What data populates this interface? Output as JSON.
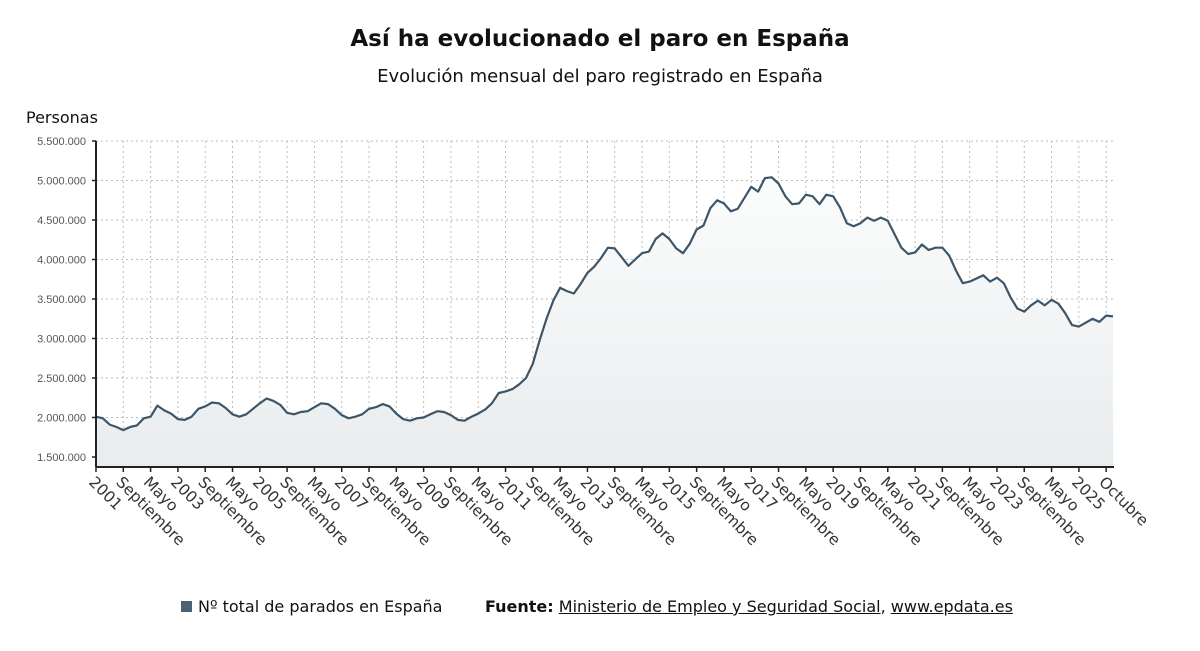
{
  "chart_data": {
    "type": "area",
    "title": "Así ha evolucionado el paro en España",
    "subtitle": "Evolución mensual del paro registrado en España",
    "ylabel": "Personas",
    "xlabel": "",
    "ylim": [
      1500000,
      5500000
    ],
    "y_ticks": [
      "1.500.000",
      "2.000.000",
      "2.500.000",
      "3.000.000",
      "3.500.000",
      "4.000.000",
      "4.500.000",
      "5.000.000",
      "5.500.000"
    ],
    "y_tick_values": [
      1500000,
      2000000,
      2500000,
      3000000,
      3500000,
      4000000,
      4500000,
      5000000,
      5500000
    ],
    "x_start": "2001-01",
    "x_end": "2025-10",
    "x_tick_labels": [
      "2001",
      "Septiembre",
      "Mayo",
      "2003",
      "Septiembre",
      "Mayo",
      "2005",
      "Septiembre",
      "Mayo",
      "2007",
      "Septiembre",
      "Mayo",
      "2009",
      "Septiembre",
      "Mayo",
      "2011",
      "Septiembre",
      "Mayo",
      "2013",
      "Septiembre",
      "Mayo",
      "2015",
      "Septiembre",
      "Mayo",
      "2017",
      "Septiembre",
      "Mayo",
      "2019",
      "Septiembre",
      "Mayo",
      "2021",
      "Septiembre",
      "Mayo",
      "2023",
      "Septiembre",
      "Mayo",
      "2025",
      "Octubre"
    ],
    "grid": true,
    "series": [
      {
        "name": "Nº total de parados en España",
        "color": "#3d5568",
        "keypoints_month_index_value": [
          [
            0,
            2010000
          ],
          [
            2,
            1990000
          ],
          [
            4,
            1910000
          ],
          [
            6,
            1880000
          ],
          [
            8,
            1840000
          ],
          [
            10,
            1880000
          ],
          [
            12,
            1900000
          ],
          [
            14,
            1990000
          ],
          [
            16,
            2010000
          ],
          [
            18,
            2150000
          ],
          [
            20,
            2090000
          ],
          [
            22,
            2050000
          ],
          [
            24,
            1980000
          ],
          [
            26,
            1970000
          ],
          [
            28,
            2010000
          ],
          [
            30,
            2110000
          ],
          [
            32,
            2140000
          ],
          [
            34,
            2190000
          ],
          [
            36,
            2180000
          ],
          [
            38,
            2120000
          ],
          [
            40,
            2040000
          ],
          [
            42,
            2010000
          ],
          [
            44,
            2040000
          ],
          [
            46,
            2110000
          ],
          [
            48,
            2180000
          ],
          [
            50,
            2240000
          ],
          [
            52,
            2210000
          ],
          [
            54,
            2160000
          ],
          [
            56,
            2060000
          ],
          [
            58,
            2040000
          ],
          [
            60,
            2070000
          ],
          [
            62,
            2080000
          ],
          [
            64,
            2130000
          ],
          [
            66,
            2180000
          ],
          [
            68,
            2170000
          ],
          [
            70,
            2110000
          ],
          [
            72,
            2030000
          ],
          [
            74,
            1990000
          ],
          [
            76,
            2010000
          ],
          [
            78,
            2040000
          ],
          [
            80,
            2110000
          ],
          [
            82,
            2130000
          ],
          [
            84,
            2170000
          ],
          [
            86,
            2140000
          ],
          [
            88,
            2050000
          ],
          [
            90,
            1980000
          ],
          [
            92,
            1960000
          ],
          [
            94,
            1990000
          ],
          [
            96,
            2000000
          ],
          [
            98,
            2040000
          ],
          [
            100,
            2080000
          ],
          [
            102,
            2070000
          ],
          [
            104,
            2030000
          ],
          [
            106,
            1970000
          ],
          [
            108,
            1960000
          ],
          [
            110,
            2010000
          ],
          [
            112,
            2050000
          ],
          [
            114,
            2100000
          ],
          [
            116,
            2180000
          ],
          [
            118,
            2310000
          ],
          [
            120,
            2330000
          ],
          [
            122,
            2360000
          ],
          [
            124,
            2420000
          ],
          [
            126,
            2500000
          ],
          [
            128,
            2680000
          ],
          [
            130,
            2980000
          ],
          [
            132,
            3250000
          ],
          [
            134,
            3480000
          ],
          [
            136,
            3640000
          ],
          [
            138,
            3600000
          ],
          [
            140,
            3570000
          ],
          [
            142,
            3690000
          ],
          [
            144,
            3830000
          ],
          [
            146,
            3910000
          ],
          [
            148,
            4020000
          ],
          [
            150,
            4150000
          ],
          [
            152,
            4140000
          ],
          [
            154,
            4030000
          ],
          [
            156,
            3920000
          ],
          [
            158,
            4000000
          ],
          [
            160,
            4080000
          ],
          [
            162,
            4100000
          ],
          [
            164,
            4260000
          ],
          [
            166,
            4330000
          ],
          [
            168,
            4260000
          ],
          [
            170,
            4140000
          ],
          [
            172,
            4080000
          ],
          [
            174,
            4200000
          ],
          [
            176,
            4380000
          ],
          [
            178,
            4430000
          ],
          [
            180,
            4650000
          ],
          [
            182,
            4750000
          ],
          [
            184,
            4710000
          ],
          [
            186,
            4610000
          ],
          [
            188,
            4640000
          ],
          [
            190,
            4780000
          ],
          [
            192,
            4920000
          ],
          [
            194,
            4860000
          ],
          [
            196,
            5030000
          ],
          [
            198,
            5040000
          ],
          [
            200,
            4960000
          ],
          [
            202,
            4800000
          ],
          [
            204,
            4700000
          ],
          [
            206,
            4710000
          ],
          [
            208,
            4820000
          ],
          [
            210,
            4800000
          ],
          [
            212,
            4700000
          ],
          [
            214,
            4820000
          ],
          [
            216,
            4800000
          ],
          [
            218,
            4660000
          ],
          [
            220,
            4460000
          ],
          [
            222,
            4420000
          ],
          [
            224,
            4460000
          ],
          [
            226,
            4530000
          ],
          [
            228,
            4490000
          ],
          [
            230,
            4530000
          ],
          [
            232,
            4490000
          ],
          [
            234,
            4320000
          ],
          [
            236,
            4150000
          ],
          [
            238,
            4070000
          ],
          [
            240,
            4090000
          ],
          [
            242,
            4190000
          ],
          [
            244,
            4120000
          ],
          [
            246,
            4150000
          ],
          [
            248,
            4150000
          ],
          [
            250,
            4050000
          ],
          [
            252,
            3860000
          ],
          [
            254,
            3700000
          ],
          [
            256,
            3720000
          ],
          [
            258,
            3760000
          ],
          [
            260,
            3800000
          ],
          [
            262,
            3720000
          ],
          [
            264,
            3770000
          ],
          [
            266,
            3700000
          ],
          [
            268,
            3520000
          ],
          [
            270,
            3380000
          ],
          [
            272,
            3340000
          ],
          [
            274,
            3420000
          ],
          [
            276,
            3480000
          ],
          [
            278,
            3420000
          ],
          [
            280,
            3490000
          ],
          [
            282,
            3440000
          ],
          [
            284,
            3320000
          ],
          [
            286,
            3170000
          ],
          [
            288,
            3150000
          ],
          [
            290,
            3200000
          ],
          [
            292,
            3250000
          ],
          [
            294,
            3210000
          ],
          [
            296,
            3290000
          ],
          [
            298,
            3280000
          ]
        ]
      }
    ],
    "legend_position": "bottom-left"
  },
  "legend": {
    "label": "Nº total de parados en España"
  },
  "source": {
    "prefix": "Fuente:",
    "org": "Ministerio de Empleo y Seguridad Social",
    "separator": ",",
    "site": "www.epdata.es"
  }
}
